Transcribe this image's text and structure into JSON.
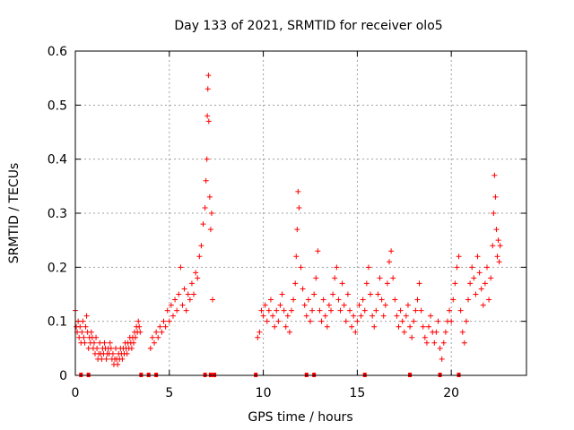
{
  "chart_data": {
    "type": "scatter",
    "title": "Day 133 of 2021, SRMTID for receiver olo5",
    "xlabel": "GPS time / hours",
    "ylabel": "SRMTID / TECUs",
    "xlim": [
      0,
      24
    ],
    "ylim": [
      0,
      0.6
    ],
    "grid": true,
    "x_ticks": [
      {
        "value": 0,
        "label": "0"
      },
      {
        "value": 5,
        "label": "5"
      },
      {
        "value": 10,
        "label": "10"
      },
      {
        "value": 15,
        "label": "15"
      },
      {
        "value": 20,
        "label": "20"
      }
    ],
    "y_ticks": [
      {
        "value": 0,
        "label": "0"
      },
      {
        "value": 0.1,
        "label": "0.1"
      },
      {
        "value": 0.2,
        "label": "0.2"
      },
      {
        "value": 0.3,
        "label": "0.3"
      },
      {
        "value": 0.4,
        "label": "0.4"
      },
      {
        "value": 0.5,
        "label": "0.5"
      },
      {
        "value": 0.6,
        "label": "0.6"
      }
    ],
    "series": [
      {
        "name": "SRMTID",
        "color": "#ff0000",
        "marker": "plus",
        "points": [
          [
            0.0,
            0.12
          ],
          [
            0.05,
            0.09
          ],
          [
            0.1,
            0.08
          ],
          [
            0.15,
            0.1
          ],
          [
            0.2,
            0.07
          ],
          [
            0.25,
            0.09
          ],
          [
            0.3,
            0.06
          ],
          [
            0.35,
            0.08
          ],
          [
            0.4,
            0.1
          ],
          [
            0.45,
            0.07
          ],
          [
            0.5,
            0.06
          ],
          [
            0.55,
            0.09
          ],
          [
            0.6,
            0.11
          ],
          [
            0.65,
            0.08
          ],
          [
            0.7,
            0.05
          ],
          [
            0.75,
            0.07
          ],
          [
            0.8,
            0.06
          ],
          [
            0.85,
            0.08
          ],
          [
            0.9,
            0.07
          ],
          [
            0.95,
            0.05
          ],
          [
            1.0,
            0.06
          ],
          [
            1.05,
            0.04
          ],
          [
            1.1,
            0.07
          ],
          [
            1.15,
            0.05
          ],
          [
            1.2,
            0.03
          ],
          [
            1.25,
            0.04
          ],
          [
            1.3,
            0.06
          ],
          [
            1.35,
            0.04
          ],
          [
            1.4,
            0.03
          ],
          [
            1.45,
            0.05
          ],
          [
            1.5,
            0.04
          ],
          [
            1.55,
            0.06
          ],
          [
            1.6,
            0.05
          ],
          [
            1.65,
            0.03
          ],
          [
            1.7,
            0.04
          ],
          [
            1.75,
            0.05
          ],
          [
            1.8,
            0.04
          ],
          [
            1.85,
            0.06
          ],
          [
            1.9,
            0.05
          ],
          [
            1.95,
            0.03
          ],
          [
            2.0,
            0.04
          ],
          [
            2.05,
            0.02
          ],
          [
            2.1,
            0.03
          ],
          [
            2.15,
            0.05
          ],
          [
            2.2,
            0.03
          ],
          [
            2.25,
            0.02
          ],
          [
            2.3,
            0.04
          ],
          [
            2.35,
            0.03
          ],
          [
            2.4,
            0.05
          ],
          [
            2.45,
            0.04
          ],
          [
            2.5,
            0.03
          ],
          [
            2.55,
            0.05
          ],
          [
            2.6,
            0.04
          ],
          [
            2.65,
            0.06
          ],
          [
            2.7,
            0.05
          ],
          [
            2.75,
            0.04
          ],
          [
            2.8,
            0.06
          ],
          [
            2.85,
            0.05
          ],
          [
            2.9,
            0.07
          ],
          [
            2.95,
            0.06
          ],
          [
            3.0,
            0.05
          ],
          [
            3.05,
            0.07
          ],
          [
            3.1,
            0.06
          ],
          [
            3.15,
            0.08
          ],
          [
            3.2,
            0.07
          ],
          [
            3.25,
            0.09
          ],
          [
            3.3,
            0.08
          ],
          [
            3.35,
            0.1
          ],
          [
            3.4,
            0.09
          ],
          [
            3.45,
            0.08
          ],
          [
            4.0,
            0.05
          ],
          [
            4.1,
            0.07
          ],
          [
            4.2,
            0.06
          ],
          [
            4.3,
            0.08
          ],
          [
            4.4,
            0.07
          ],
          [
            4.5,
            0.09
          ],
          [
            4.6,
            0.08
          ],
          [
            4.7,
            0.1
          ],
          [
            4.8,
            0.09
          ],
          [
            4.9,
            0.12
          ],
          [
            5.0,
            0.1
          ],
          [
            5.1,
            0.13
          ],
          [
            5.2,
            0.11
          ],
          [
            5.3,
            0.14
          ],
          [
            5.4,
            0.12
          ],
          [
            5.5,
            0.15
          ],
          [
            5.6,
            0.2
          ],
          [
            5.7,
            0.13
          ],
          [
            5.8,
            0.16
          ],
          [
            5.9,
            0.12
          ],
          [
            6.0,
            0.15
          ],
          [
            6.1,
            0.14
          ],
          [
            6.2,
            0.17
          ],
          [
            6.3,
            0.15
          ],
          [
            6.4,
            0.19
          ],
          [
            6.5,
            0.18
          ],
          [
            6.6,
            0.22
          ],
          [
            6.7,
            0.24
          ],
          [
            6.8,
            0.28
          ],
          [
            6.9,
            0.31
          ],
          [
            6.95,
            0.36
          ],
          [
            7.0,
            0.4
          ],
          [
            7.02,
            0.48
          ],
          [
            7.05,
            0.53
          ],
          [
            7.08,
            0.555
          ],
          [
            7.1,
            0.47
          ],
          [
            7.15,
            0.33
          ],
          [
            7.2,
            0.27
          ],
          [
            7.25,
            0.3
          ],
          [
            7.3,
            0.14
          ],
          [
            9.7,
            0.07
          ],
          [
            9.8,
            0.08
          ],
          [
            9.9,
            0.12
          ],
          [
            10.0,
            0.11
          ],
          [
            10.1,
            0.13
          ],
          [
            10.2,
            0.1
          ],
          [
            10.3,
            0.12
          ],
          [
            10.4,
            0.14
          ],
          [
            10.5,
            0.11
          ],
          [
            10.6,
            0.09
          ],
          [
            10.7,
            0.12
          ],
          [
            10.8,
            0.1
          ],
          [
            10.9,
            0.13
          ],
          [
            11.0,
            0.15
          ],
          [
            11.1,
            0.12
          ],
          [
            11.2,
            0.09
          ],
          [
            11.3,
            0.11
          ],
          [
            11.4,
            0.08
          ],
          [
            11.5,
            0.12
          ],
          [
            11.6,
            0.14
          ],
          [
            11.7,
            0.17
          ],
          [
            11.75,
            0.22
          ],
          [
            11.8,
            0.27
          ],
          [
            11.85,
            0.34
          ],
          [
            11.9,
            0.31
          ],
          [
            12.0,
            0.2
          ],
          [
            12.1,
            0.16
          ],
          [
            12.2,
            0.13
          ],
          [
            12.3,
            0.11
          ],
          [
            12.4,
            0.14
          ],
          [
            12.5,
            0.1
          ],
          [
            12.6,
            0.12
          ],
          [
            12.7,
            0.15
          ],
          [
            12.8,
            0.18
          ],
          [
            12.9,
            0.23
          ],
          [
            13.0,
            0.12
          ],
          [
            13.1,
            0.1
          ],
          [
            13.2,
            0.14
          ],
          [
            13.3,
            0.11
          ],
          [
            13.4,
            0.09
          ],
          [
            13.5,
            0.13
          ],
          [
            13.6,
            0.12
          ],
          [
            13.7,
            0.15
          ],
          [
            13.8,
            0.18
          ],
          [
            13.9,
            0.2
          ],
          [
            14.0,
            0.14
          ],
          [
            14.1,
            0.12
          ],
          [
            14.2,
            0.17
          ],
          [
            14.3,
            0.13
          ],
          [
            14.4,
            0.1
          ],
          [
            14.5,
            0.15
          ],
          [
            14.6,
            0.12
          ],
          [
            14.7,
            0.09
          ],
          [
            14.8,
            0.11
          ],
          [
            14.9,
            0.08
          ],
          [
            15.0,
            0.1
          ],
          [
            15.1,
            0.13
          ],
          [
            15.2,
            0.11
          ],
          [
            15.3,
            0.14
          ],
          [
            15.4,
            0.12
          ],
          [
            15.5,
            0.17
          ],
          [
            15.6,
            0.2
          ],
          [
            15.7,
            0.15
          ],
          [
            15.8,
            0.11
          ],
          [
            15.9,
            0.09
          ],
          [
            16.0,
            0.12
          ],
          [
            16.1,
            0.15
          ],
          [
            16.2,
            0.18
          ],
          [
            16.3,
            0.14
          ],
          [
            16.4,
            0.11
          ],
          [
            16.5,
            0.13
          ],
          [
            16.6,
            0.17
          ],
          [
            16.7,
            0.21
          ],
          [
            16.8,
            0.23
          ],
          [
            16.9,
            0.18
          ],
          [
            17.0,
            0.14
          ],
          [
            17.1,
            0.11
          ],
          [
            17.2,
            0.09
          ],
          [
            17.3,
            0.12
          ],
          [
            17.4,
            0.1
          ],
          [
            17.5,
            0.08
          ],
          [
            17.6,
            0.11
          ],
          [
            17.7,
            0.13
          ],
          [
            17.8,
            0.09
          ],
          [
            17.9,
            0.07
          ],
          [
            18.0,
            0.1
          ],
          [
            18.1,
            0.12
          ],
          [
            18.2,
            0.14
          ],
          [
            18.3,
            0.17
          ],
          [
            18.4,
            0.12
          ],
          [
            18.5,
            0.09
          ],
          [
            18.6,
            0.07
          ],
          [
            18.7,
            0.06
          ],
          [
            18.8,
            0.09
          ],
          [
            18.9,
            0.11
          ],
          [
            19.0,
            0.08
          ],
          [
            19.1,
            0.06
          ],
          [
            19.2,
            0.08
          ],
          [
            19.3,
            0.1
          ],
          [
            19.4,
            0.05
          ],
          [
            19.5,
            0.03
          ],
          [
            19.6,
            0.06
          ],
          [
            19.7,
            0.08
          ],
          [
            19.8,
            0.1
          ],
          [
            19.9,
            0.12
          ],
          [
            20.0,
            0.1
          ],
          [
            20.1,
            0.14
          ],
          [
            20.2,
            0.17
          ],
          [
            20.3,
            0.2
          ],
          [
            20.4,
            0.22
          ],
          [
            20.5,
            0.12
          ],
          [
            20.6,
            0.08
          ],
          [
            20.7,
            0.06
          ],
          [
            20.8,
            0.1
          ],
          [
            20.9,
            0.14
          ],
          [
            21.0,
            0.17
          ],
          [
            21.1,
            0.2
          ],
          [
            21.2,
            0.18
          ],
          [
            21.3,
            0.15
          ],
          [
            21.4,
            0.22
          ],
          [
            21.5,
            0.19
          ],
          [
            21.6,
            0.16
          ],
          [
            21.7,
            0.13
          ],
          [
            21.8,
            0.17
          ],
          [
            21.9,
            0.2
          ],
          [
            22.0,
            0.14
          ],
          [
            22.1,
            0.18
          ],
          [
            22.2,
            0.24
          ],
          [
            22.25,
            0.3
          ],
          [
            22.3,
            0.37
          ],
          [
            22.35,
            0.33
          ],
          [
            22.4,
            0.27
          ],
          [
            22.45,
            0.22
          ],
          [
            22.5,
            0.25
          ],
          [
            22.55,
            0.21
          ],
          [
            22.6,
            0.24
          ]
        ]
      }
    ],
    "axis_markers": {
      "description": "small red squares along the zero line",
      "x": [
        0.3,
        0.7,
        3.5,
        3.9,
        4.3,
        6.9,
        7.2,
        7.4,
        9.6,
        12.3,
        12.7,
        15.4,
        17.8,
        19.4,
        20.4
      ]
    }
  },
  "style": {
    "marker_color": "#ff0000",
    "grid_color": "#a0a0a0",
    "axis_color": "#000000"
  }
}
